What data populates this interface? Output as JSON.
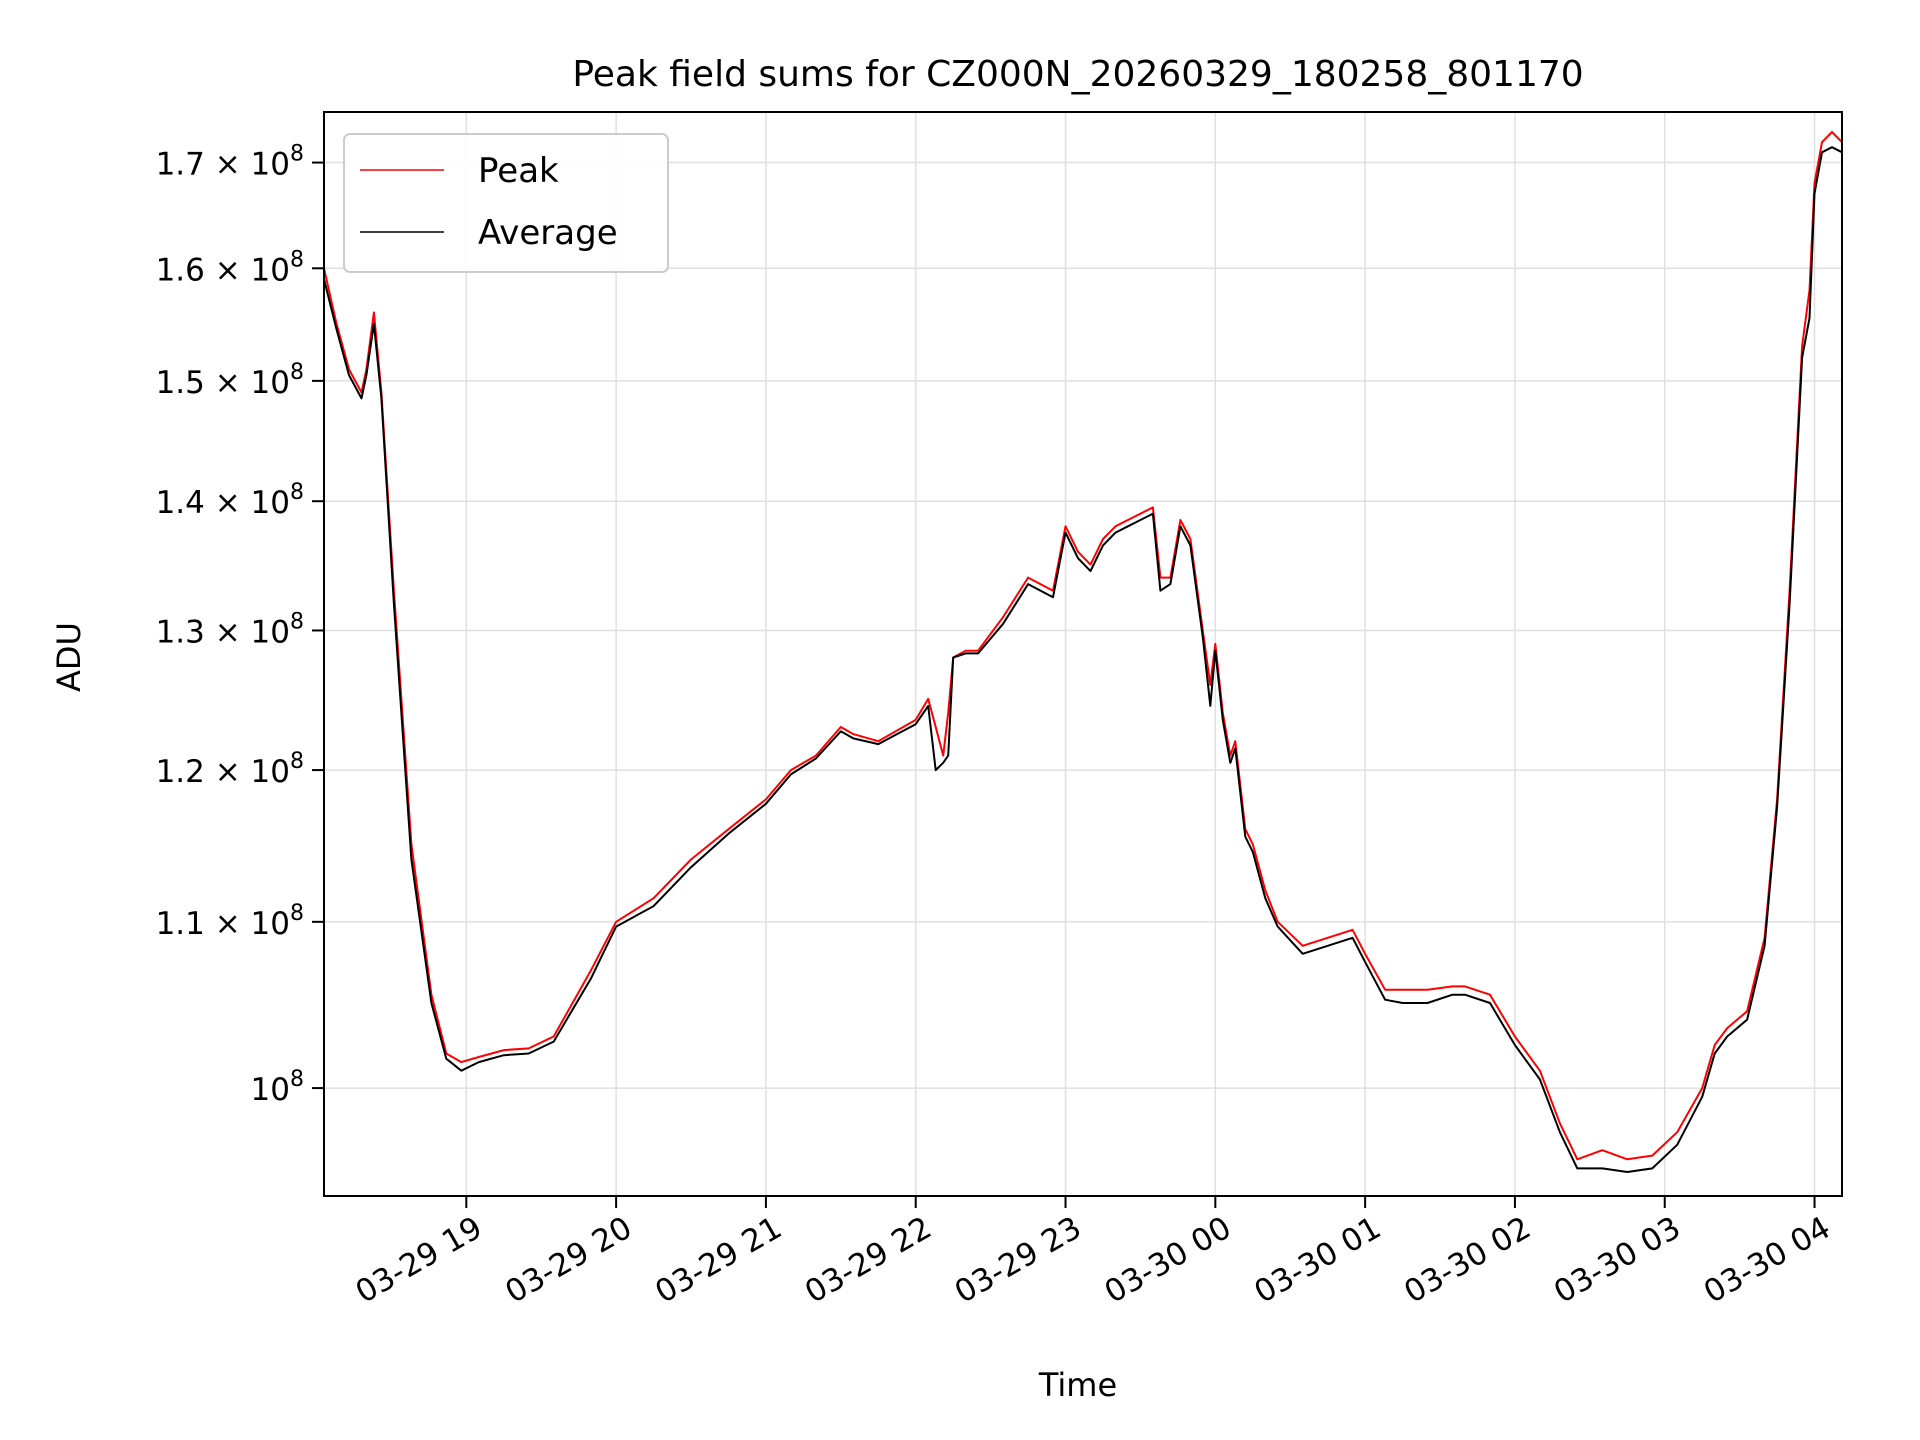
{
  "chart_data": {
    "type": "line",
    "title": "Peak field sums for CZ000N_20260329_180258_801170",
    "xlabel": "Time",
    "ylabel": "ADU",
    "yscale": "log",
    "xlim": [
      "2026-03-29 18:03",
      "2026-03-30 04:11"
    ],
    "ylim": [
      94000000.0,
      175000000.0
    ],
    "grid": true,
    "legend_position": "upper-left",
    "x_ticks": [
      {
        "label": "03-29 19",
        "t": "2026-03-29 19:00"
      },
      {
        "label": "03-29 20",
        "t": "2026-03-29 20:00"
      },
      {
        "label": "03-29 21",
        "t": "2026-03-29 21:00"
      },
      {
        "label": "03-29 22",
        "t": "2026-03-29 22:00"
      },
      {
        "label": "03-29 23",
        "t": "2026-03-29 23:00"
      },
      {
        "label": "03-30 00",
        "t": "2026-03-30 00:00"
      },
      {
        "label": "03-30 01",
        "t": "2026-03-30 01:00"
      },
      {
        "label": "03-30 02",
        "t": "2026-03-30 02:00"
      },
      {
        "label": "03-30 03",
        "t": "2026-03-30 03:00"
      },
      {
        "label": "03-30 04",
        "t": "2026-03-30 04:00"
      }
    ],
    "y_ticks": [
      {
        "mant": "",
        "exp": "8",
        "v": 100000000.0
      },
      {
        "mant": "1.1",
        "exp": "8",
        "v": 110000000.0
      },
      {
        "mant": "1.2",
        "exp": "8",
        "v": 120000000.0
      },
      {
        "mant": "1.3",
        "exp": "8",
        "v": 130000000.0
      },
      {
        "mant": "1.4",
        "exp": "8",
        "v": 140000000.0
      },
      {
        "mant": "1.5",
        "exp": "8",
        "v": 150000000.0
      },
      {
        "mant": "1.6",
        "exp": "8",
        "v": 160000000.0
      },
      {
        "mant": "1.7",
        "exp": "8",
        "v": 170000000.0
      }
    ],
    "series": [
      {
        "name": "Peak",
        "color": "#ff0000",
        "x": [
          "2026-03-29 18:03",
          "2026-03-29 18:08",
          "2026-03-29 18:13",
          "2026-03-29 18:18",
          "2026-03-29 18:20",
          "2026-03-29 18:23",
          "2026-03-29 18:26",
          "2026-03-29 18:31",
          "2026-03-29 18:38",
          "2026-03-29 18:46",
          "2026-03-29 18:52",
          "2026-03-29 18:58",
          "2026-03-29 19:05",
          "2026-03-29 19:15",
          "2026-03-29 19:25",
          "2026-03-29 19:35",
          "2026-03-29 19:50",
          "2026-03-29 20:00",
          "2026-03-29 20:15",
          "2026-03-29 20:30",
          "2026-03-29 20:45",
          "2026-03-29 21:00",
          "2026-03-29 21:10",
          "2026-03-29 21:20",
          "2026-03-29 21:30",
          "2026-03-29 21:35",
          "2026-03-29 21:45",
          "2026-03-29 22:00",
          "2026-03-29 22:05",
          "2026-03-29 22:08",
          "2026-03-29 22:11",
          "2026-03-29 22:13",
          "2026-03-29 22:15",
          "2026-03-29 22:20",
          "2026-03-29 22:25",
          "2026-03-29 22:35",
          "2026-03-29 22:45",
          "2026-03-29 22:55",
          "2026-03-29 23:00",
          "2026-03-29 23:05",
          "2026-03-29 23:10",
          "2026-03-29 23:15",
          "2026-03-29 23:20",
          "2026-03-29 23:25",
          "2026-03-29 23:35",
          "2026-03-29 23:38",
          "2026-03-29 23:42",
          "2026-03-29 23:46",
          "2026-03-29 23:50",
          "2026-03-29 23:55",
          "2026-03-29 23:58",
          "2026-03-30 00:00",
          "2026-03-30 00:03",
          "2026-03-30 00:06",
          "2026-03-30 00:08",
          "2026-03-30 00:12",
          "2026-03-30 00:15",
          "2026-03-30 00:20",
          "2026-03-30 00:25",
          "2026-03-30 00:35",
          "2026-03-30 00:45",
          "2026-03-30 00:55",
          "2026-03-30 01:00",
          "2026-03-30 01:08",
          "2026-03-30 01:15",
          "2026-03-30 01:25",
          "2026-03-30 01:35",
          "2026-03-30 01:40",
          "2026-03-30 01:50",
          "2026-03-30 02:00",
          "2026-03-30 02:10",
          "2026-03-30 02:18",
          "2026-03-30 02:25",
          "2026-03-30 02:35",
          "2026-03-30 02:45",
          "2026-03-30 02:55",
          "2026-03-30 03:05",
          "2026-03-30 03:15",
          "2026-03-30 03:20",
          "2026-03-30 03:25",
          "2026-03-30 03:33",
          "2026-03-30 03:40",
          "2026-03-30 03:45",
          "2026-03-30 03:50",
          "2026-03-30 03:55",
          "2026-03-30 03:58",
          "2026-03-30 04:00",
          "2026-03-30 04:03",
          "2026-03-30 04:07",
          "2026-03-30 04:11"
        ],
        "y": [
          160000000.0,
          155000000.0,
          151000000.0,
          149000000.0,
          151000000.0,
          156000000.0,
          149000000.0,
          133000000.0,
          115000000.0,
          105500000.0,
          102000000.0,
          101500000.0,
          101800000.0,
          102200000.0,
          102300000.0,
          103000000.0,
          107000000.0,
          110000000.0,
          111500000.0,
          114000000.0,
          116000000.0,
          118000000.0,
          120000000.0,
          121000000.0,
          123000000.0,
          122500000.0,
          122000000.0,
          123500000.0,
          125000000.0,
          123000000.0,
          121000000.0,
          124000000.0,
          128000000.0,
          128500000.0,
          128500000.0,
          131000000.0,
          134000000.0,
          133000000.0,
          138000000.0,
          136000000.0,
          135000000.0,
          137000000.0,
          138000000.0,
          138500000.0,
          139500000.0,
          134000000.0,
          134000000.0,
          138500000.0,
          137000000.0,
          130000000.0,
          126000000.0,
          129000000.0,
          124000000.0,
          121000000.0,
          122000000.0,
          116000000.0,
          115000000.0,
          112000000.0,
          110000000.0,
          108500000.0,
          109000000.0,
          109500000.0,
          108000000.0,
          105800000.0,
          105800000.0,
          105800000.0,
          106000000.0,
          106000000.0,
          105500000.0,
          103000000.0,
          101000000.0,
          98000000.0,
          96000000.0,
          96500000.0,
          96000000.0,
          96200000.0,
          97500000.0,
          100000000.0,
          102500000.0,
          103500000.0,
          104500000.0,
          109000000.0,
          118000000.0,
          133000000.0,
          153000000.0,
          158000000.0,
          168000000.0,
          172000000.0,
          173000000.0,
          172000000.0
        ]
      },
      {
        "name": "Average",
        "color": "#000000",
        "x": [
          "2026-03-29 18:03",
          "2026-03-29 18:08",
          "2026-03-29 18:13",
          "2026-03-29 18:18",
          "2026-03-29 18:20",
          "2026-03-29 18:23",
          "2026-03-29 18:26",
          "2026-03-29 18:31",
          "2026-03-29 18:38",
          "2026-03-29 18:46",
          "2026-03-29 18:52",
          "2026-03-29 18:58",
          "2026-03-29 19:05",
          "2026-03-29 19:15",
          "2026-03-29 19:25",
          "2026-03-29 19:35",
          "2026-03-29 19:50",
          "2026-03-29 20:00",
          "2026-03-29 20:15",
          "2026-03-29 20:30",
          "2026-03-29 20:45",
          "2026-03-29 21:00",
          "2026-03-29 21:10",
          "2026-03-29 21:20",
          "2026-03-29 21:30",
          "2026-03-29 21:35",
          "2026-03-29 21:45",
          "2026-03-29 22:00",
          "2026-03-29 22:05",
          "2026-03-29 22:08",
          "2026-03-29 22:11",
          "2026-03-29 22:13",
          "2026-03-29 22:15",
          "2026-03-29 22:20",
          "2026-03-29 22:25",
          "2026-03-29 22:35",
          "2026-03-29 22:45",
          "2026-03-29 22:55",
          "2026-03-29 23:00",
          "2026-03-29 23:05",
          "2026-03-29 23:10",
          "2026-03-29 23:15",
          "2026-03-29 23:20",
          "2026-03-29 23:25",
          "2026-03-29 23:35",
          "2026-03-29 23:38",
          "2026-03-29 23:42",
          "2026-03-29 23:46",
          "2026-03-29 23:50",
          "2026-03-29 23:55",
          "2026-03-29 23:58",
          "2026-03-30 00:00",
          "2026-03-30 00:03",
          "2026-03-30 00:06",
          "2026-03-30 00:08",
          "2026-03-30 00:12",
          "2026-03-30 00:15",
          "2026-03-30 00:20",
          "2026-03-30 00:25",
          "2026-03-30 00:35",
          "2026-03-30 00:45",
          "2026-03-30 00:55",
          "2026-03-30 01:00",
          "2026-03-30 01:08",
          "2026-03-30 01:15",
          "2026-03-30 01:25",
          "2026-03-30 01:35",
          "2026-03-30 01:40",
          "2026-03-30 01:50",
          "2026-03-30 02:00",
          "2026-03-30 02:10",
          "2026-03-30 02:18",
          "2026-03-30 02:25",
          "2026-03-30 02:35",
          "2026-03-30 02:45",
          "2026-03-30 02:55",
          "2026-03-30 03:05",
          "2026-03-30 03:15",
          "2026-03-30 03:20",
          "2026-03-30 03:25",
          "2026-03-30 03:33",
          "2026-03-30 03:40",
          "2026-03-30 03:45",
          "2026-03-30 03:50",
          "2026-03-30 03:55",
          "2026-03-30 03:58",
          "2026-03-30 04:00",
          "2026-03-30 04:03",
          "2026-03-30 04:07",
          "2026-03-30 04:11"
        ],
        "y": [
          159000000.0,
          154500000.0,
          150500000.0,
          148500000.0,
          150500000.0,
          155000000.0,
          148500000.0,
          132000000.0,
          114000000.0,
          105000000.0,
          101700000.0,
          101000000.0,
          101500000.0,
          101900000.0,
          102000000.0,
          102700000.0,
          106500000.0,
          109700000.0,
          111000000.0,
          113500000.0,
          115700000.0,
          117700000.0,
          119700000.0,
          120800000.0,
          122700000.0,
          122200000.0,
          121800000.0,
          123200000.0,
          124500000.0,
          120000000.0,
          120500000.0,
          121000000.0,
          128000000.0,
          128300000.0,
          128300000.0,
          130500000.0,
          133500000.0,
          132500000.0,
          137500000.0,
          135500000.0,
          134500000.0,
          136500000.0,
          137500000.0,
          138000000.0,
          139000000.0,
          133000000.0,
          133500000.0,
          138000000.0,
          136500000.0,
          129500000.0,
          124500000.0,
          128500000.0,
          123500000.0,
          120500000.0,
          121500000.0,
          115500000.0,
          114500000.0,
          111500000.0,
          109700000.0,
          108000000.0,
          108500000.0,
          109000000.0,
          107500000.0,
          105200000.0,
          105000000.0,
          105000000.0,
          105500000.0,
          105500000.0,
          105000000.0,
          102500000.0,
          100500000.0,
          97500000.0,
          95500000.0,
          95500000.0,
          95300000.0,
          95500000.0,
          96800000.0,
          99500000.0,
          102000000.0,
          103000000.0,
          104000000.0,
          108500000.0,
          117500000.0,
          132000000.0,
          152000000.0,
          155500000.0,
          167000000.0,
          171000000.0,
          171500000.0,
          171000000.0
        ]
      }
    ]
  }
}
